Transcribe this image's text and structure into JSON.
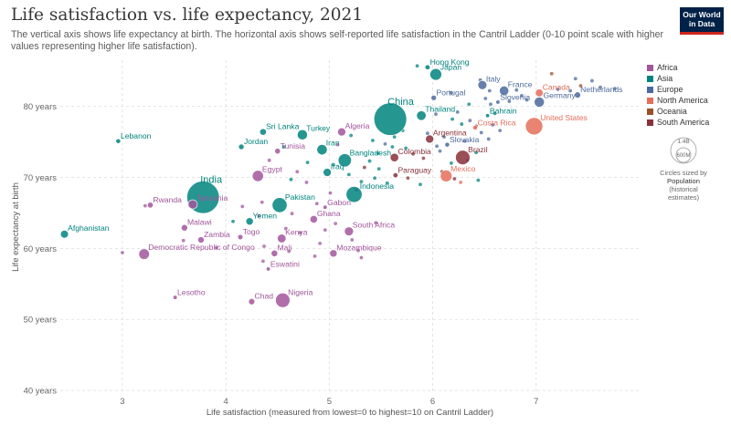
{
  "header": {
    "title": "Life satisfaction vs. life expectancy, 2021",
    "subtitle": "The vertical axis shows life expectancy at birth. The horizontal axis shows self-reported life satisfaction in the Cantril Ladder (0-10 point scale with higher values representing higher life satisfaction).",
    "logo_line1": "Our World",
    "logo_line2": "in Data"
  },
  "size_legend": {
    "big": "1.4B",
    "small": "600M",
    "caption": "Circles sized by",
    "title_line1": "Population",
    "title_line2": "(historical",
    "title_line3": "estimates)"
  },
  "chart_data": {
    "type": "scatter",
    "title": "Life satisfaction vs. life expectancy, 2021",
    "xlabel": "Life satisfaction (measured from lowest=0 to highest=10 on Cantril Ladder)",
    "ylabel": "Life expectancy at birth",
    "xlim": [
      2.4,
      8.0
    ],
    "ylim": [
      39.5,
      86.5
    ],
    "x_ticks": [
      3,
      4,
      5,
      6,
      7
    ],
    "y_ticks": [
      {
        "value": 40,
        "label": "40 years"
      },
      {
        "value": 50,
        "label": "50 years"
      },
      {
        "value": 60,
        "label": "60 years"
      },
      {
        "value": 70,
        "label": "70 years"
      },
      {
        "value": 80,
        "label": "80 years"
      }
    ],
    "grid": true,
    "legend_position": "right",
    "regions": [
      {
        "name": "Africa",
        "color": "#a2559c"
      },
      {
        "name": "Asia",
        "color": "#00847e"
      },
      {
        "name": "Europe",
        "color": "#4c6a9c"
      },
      {
        "name": "North America",
        "color": "#e56e5a"
      },
      {
        "name": "Oceania",
        "color": "#9a5129"
      },
      {
        "name": "South America",
        "color": "#883039"
      }
    ],
    "labeled_points": [
      {
        "label": "Hong Kong",
        "x": 5.95,
        "y": 85.5,
        "region": "Asia",
        "pop": 7.4
      },
      {
        "label": "Japan",
        "x": 6.03,
        "y": 84.5,
        "region": "Asia",
        "pop": 125
      },
      {
        "label": "Italy",
        "x": 6.48,
        "y": 83.0,
        "region": "Europe",
        "pop": 59
      },
      {
        "label": "France",
        "x": 6.69,
        "y": 82.2,
        "region": "Europe",
        "pop": 68
      },
      {
        "label": "Canada",
        "x": 7.03,
        "y": 81.9,
        "region": "North America",
        "pop": 38
      },
      {
        "label": "Netherlands",
        "x": 7.4,
        "y": 81.6,
        "region": "Europe",
        "pop": 17.5
      },
      {
        "label": "Portugal",
        "x": 6.01,
        "y": 81.2,
        "region": "Europe",
        "pop": 10
      },
      {
        "label": "Slovenia",
        "x": 6.63,
        "y": 80.6,
        "region": "Europe",
        "pop": 2.1
      },
      {
        "label": "Germany",
        "x": 7.03,
        "y": 80.6,
        "region": "Europe",
        "pop": 83
      },
      {
        "label": "Thailand",
        "x": 5.89,
        "y": 78.7,
        "region": "Asia",
        "pop": 70
      },
      {
        "label": "Bahrain",
        "x": 6.53,
        "y": 78.7,
        "region": "Asia",
        "pop": 1.5
      },
      {
        "label": "United States",
        "x": 6.98,
        "y": 77.2,
        "region": "North America",
        "pop": 333
      },
      {
        "label": "China",
        "x": 5.59,
        "y": 78.2,
        "region": "Asia",
        "pop": 1425
      },
      {
        "label": "Costa Rica",
        "x": 6.41,
        "y": 77.0,
        "region": "North America",
        "pop": 5.1
      },
      {
        "label": "Sri Lanka",
        "x": 4.36,
        "y": 76.4,
        "region": "Asia",
        "pop": 22
      },
      {
        "label": "Turkey",
        "x": 4.74,
        "y": 76.0,
        "region": "Asia",
        "pop": 85
      },
      {
        "label": "Algeria",
        "x": 5.12,
        "y": 76.4,
        "region": "Africa",
        "pop": 44
      },
      {
        "label": "Argentina",
        "x": 5.97,
        "y": 75.4,
        "region": "South America",
        "pop": 45
      },
      {
        "label": "Slovakia",
        "x": 6.14,
        "y": 74.6,
        "region": "Europe",
        "pop": 5.4
      },
      {
        "label": "Lebanon",
        "x": 2.96,
        "y": 75.1,
        "region": "Asia",
        "pop": 5.6
      },
      {
        "label": "Jordan",
        "x": 4.15,
        "y": 74.3,
        "region": "Asia",
        "pop": 11
      },
      {
        "label": "Iran",
        "x": 4.93,
        "y": 73.9,
        "region": "Asia",
        "pop": 88
      },
      {
        "label": "Tunisia",
        "x": 4.5,
        "y": 73.7,
        "region": "Africa",
        "pop": 12
      },
      {
        "label": "Bangladesh",
        "x": 5.15,
        "y": 72.4,
        "region": "Asia",
        "pop": 169
      },
      {
        "label": "Colombia",
        "x": 5.63,
        "y": 72.8,
        "region": "South America",
        "pop": 51
      },
      {
        "label": "Brazil",
        "x": 6.29,
        "y": 72.8,
        "region": "South America",
        "pop": 214
      },
      {
        "label": "Iraq",
        "x": 4.98,
        "y": 70.7,
        "region": "Asia",
        "pop": 44
      },
      {
        "label": "Egypt",
        "x": 4.31,
        "y": 70.2,
        "region": "Africa",
        "pop": 109
      },
      {
        "label": "Paraguay",
        "x": 5.64,
        "y": 70.3,
        "region": "South America",
        "pop": 6.7
      },
      {
        "label": "Mexico",
        "x": 6.13,
        "y": 70.2,
        "region": "North America",
        "pop": 126
      },
      {
        "label": "India",
        "x": 3.78,
        "y": 67.2,
        "region": "Asia",
        "pop": 1408
      },
      {
        "label": "Tanzania",
        "x": 3.68,
        "y": 66.2,
        "region": "Africa",
        "pop": 64
      },
      {
        "label": "Indonesia",
        "x": 5.24,
        "y": 67.6,
        "region": "Asia",
        "pop": 274
      },
      {
        "label": "Pakistan",
        "x": 4.52,
        "y": 66.1,
        "region": "Asia",
        "pop": 231
      },
      {
        "label": "Rwanda",
        "x": 3.27,
        "y": 66.1,
        "region": "Africa",
        "pop": 13.5
      },
      {
        "label": "Gabon",
        "x": 4.96,
        "y": 65.8,
        "region": "Africa",
        "pop": 2.3
      },
      {
        "label": "Yemen",
        "x": 4.23,
        "y": 63.8,
        "region": "Asia",
        "pop": 33
      },
      {
        "label": "Ghana",
        "x": 4.85,
        "y": 64.1,
        "region": "Africa",
        "pop": 33
      },
      {
        "label": "South Africa",
        "x": 5.19,
        "y": 62.4,
        "region": "Africa",
        "pop": 59
      },
      {
        "label": "Malawi",
        "x": 3.6,
        "y": 62.9,
        "region": "Africa",
        "pop": 19.9
      },
      {
        "label": "Togo",
        "x": 4.14,
        "y": 61.6,
        "region": "Africa",
        "pop": 8.6
      },
      {
        "label": "Kenya",
        "x": 4.54,
        "y": 61.4,
        "region": "Africa",
        "pop": 53
      },
      {
        "label": "Zambia",
        "x": 3.76,
        "y": 61.2,
        "region": "Africa",
        "pop": 19.5
      },
      {
        "label": "Afghanistan",
        "x": 2.44,
        "y": 62.0,
        "region": "Asia",
        "pop": 40
      },
      {
        "label": "Democratic Republic of Congo",
        "x": 3.21,
        "y": 59.2,
        "region": "Africa",
        "pop": 96
      },
      {
        "label": "Mali",
        "x": 4.47,
        "y": 59.3,
        "region": "Africa",
        "pop": 22
      },
      {
        "label": "Mozambique",
        "x": 5.04,
        "y": 59.3,
        "region": "Africa",
        "pop": 32
      },
      {
        "label": "Eswatini",
        "x": 4.41,
        "y": 57.1,
        "region": "Africa",
        "pop": 1.2
      },
      {
        "label": "Lesotho",
        "x": 3.51,
        "y": 53.1,
        "region": "Africa",
        "pop": 2.3
      },
      {
        "label": "Chad",
        "x": 4.25,
        "y": 52.5,
        "region": "Africa",
        "pop": 17.2
      },
      {
        "label": "Nigeria",
        "x": 4.55,
        "y": 52.7,
        "region": "Africa",
        "pop": 213
      }
    ],
    "unlabeled_points": [
      {
        "x": 5.85,
        "y": 85.7,
        "region": "Asia"
      },
      {
        "x": 6.46,
        "y": 83.7,
        "region": "Europe"
      },
      {
        "x": 7.15,
        "y": 84.6,
        "region": "Oceania"
      },
      {
        "x": 7.38,
        "y": 83.9,
        "region": "Europe"
      },
      {
        "x": 7.54,
        "y": 83.6,
        "region": "Europe"
      },
      {
        "x": 7.76,
        "y": 82.5,
        "region": "Europe"
      },
      {
        "x": 7.62,
        "y": 82.7,
        "region": "Europe"
      },
      {
        "x": 7.43,
        "y": 82.9,
        "region": "Oceania"
      },
      {
        "x": 6.55,
        "y": 82.2,
        "region": "Europe"
      },
      {
        "x": 6.81,
        "y": 82.3,
        "region": "Europe"
      },
      {
        "x": 6.86,
        "y": 81.5,
        "region": "Europe"
      },
      {
        "x": 7.33,
        "y": 82.2,
        "region": "Europe"
      },
      {
        "x": 7.21,
        "y": 82.4,
        "region": "Europe"
      },
      {
        "x": 6.18,
        "y": 81.9,
        "region": "Europe"
      },
      {
        "x": 6.51,
        "y": 81.1,
        "region": "Europe"
      },
      {
        "x": 6.74,
        "y": 80.7,
        "region": "Europe"
      },
      {
        "x": 6.91,
        "y": 80.9,
        "region": "Europe"
      },
      {
        "x": 6.56,
        "y": 80.3,
        "region": "Europe"
      },
      {
        "x": 6.24,
        "y": 79.2,
        "region": "Europe"
      },
      {
        "x": 6.03,
        "y": 78.9,
        "region": "Europe"
      },
      {
        "x": 6.36,
        "y": 78.0,
        "region": "Europe"
      },
      {
        "x": 6.42,
        "y": 77.2,
        "region": "South America"
      },
      {
        "x": 6.28,
        "y": 77.5,
        "region": "Asia"
      },
      {
        "x": 6.19,
        "y": 78.2,
        "region": "Asia"
      },
      {
        "x": 5.95,
        "y": 76.2,
        "region": "Europe"
      },
      {
        "x": 6.65,
        "y": 76.6,
        "region": "Europe"
      },
      {
        "x": 6.58,
        "y": 77.4,
        "region": "Europe"
      },
      {
        "x": 6.54,
        "y": 75.4,
        "region": "Europe"
      },
      {
        "x": 6.47,
        "y": 76.3,
        "region": "Europe"
      },
      {
        "x": 6.11,
        "y": 75.7,
        "region": "Europe"
      },
      {
        "x": 6.04,
        "y": 74.4,
        "region": "Europe"
      },
      {
        "x": 6.31,
        "y": 75.1,
        "region": "Europe"
      },
      {
        "x": 5.63,
        "y": 75.7,
        "region": "Asia"
      },
      {
        "x": 5.54,
        "y": 74.7,
        "region": "Europe"
      },
      {
        "x": 5.42,
        "y": 75.2,
        "region": "Asia"
      },
      {
        "x": 5.74,
        "y": 74.1,
        "region": "Asia"
      },
      {
        "x": 5.81,
        "y": 73.3,
        "region": "South America"
      },
      {
        "x": 5.91,
        "y": 72.7,
        "region": "South America"
      },
      {
        "x": 6.07,
        "y": 73.7,
        "region": "Europe"
      },
      {
        "x": 6.18,
        "y": 72.0,
        "region": "Asia"
      },
      {
        "x": 6.09,
        "y": 70.8,
        "region": "South America"
      },
      {
        "x": 6.21,
        "y": 69.8,
        "region": "South America"
      },
      {
        "x": 6.27,
        "y": 69.3,
        "region": "North America"
      },
      {
        "x": 6.44,
        "y": 69.6,
        "region": "Asia"
      },
      {
        "x": 5.47,
        "y": 73.4,
        "region": "Asia"
      },
      {
        "x": 5.39,
        "y": 72.3,
        "region": "Asia"
      },
      {
        "x": 5.34,
        "y": 71.4,
        "region": "South America"
      },
      {
        "x": 5.04,
        "y": 71.8,
        "region": "Asia"
      },
      {
        "x": 5.19,
        "y": 70.4,
        "region": "Asia"
      },
      {
        "x": 5.31,
        "y": 69.4,
        "region": "Asia"
      },
      {
        "x": 5.56,
        "y": 69.2,
        "region": "Asia"
      },
      {
        "x": 5.76,
        "y": 69.9,
        "region": "South America"
      },
      {
        "x": 5.88,
        "y": 69.0,
        "region": "Asia"
      },
      {
        "x": 4.56,
        "y": 74.3,
        "region": "Asia"
      },
      {
        "x": 4.79,
        "y": 72.1,
        "region": "Asia"
      },
      {
        "x": 4.69,
        "y": 70.8,
        "region": "Africa"
      },
      {
        "x": 4.63,
        "y": 69.7,
        "region": "Asia"
      },
      {
        "x": 4.42,
        "y": 72.4,
        "region": "Africa"
      },
      {
        "x": 5.08,
        "y": 74.6,
        "region": "Africa"
      },
      {
        "x": 5.21,
        "y": 75.9,
        "region": "Asia"
      },
      {
        "x": 5.44,
        "y": 69.9,
        "region": "Asia"
      },
      {
        "x": 5.26,
        "y": 68.2,
        "region": "Africa"
      },
      {
        "x": 5.01,
        "y": 67.8,
        "region": "Africa"
      },
      {
        "x": 4.88,
        "y": 66.3,
        "region": "Africa"
      },
      {
        "x": 4.64,
        "y": 64.9,
        "region": "Africa"
      },
      {
        "x": 4.32,
        "y": 64.6,
        "region": "Africa"
      },
      {
        "x": 4.07,
        "y": 63.8,
        "region": "Asia"
      },
      {
        "x": 4.58,
        "y": 62.8,
        "region": "Africa"
      },
      {
        "x": 4.72,
        "y": 62.2,
        "region": "Africa"
      },
      {
        "x": 4.96,
        "y": 62.6,
        "region": "Africa"
      },
      {
        "x": 5.06,
        "y": 63.5,
        "region": "Africa"
      },
      {
        "x": 5.22,
        "y": 61.2,
        "region": "Africa"
      },
      {
        "x": 5.45,
        "y": 63.6,
        "region": "Africa"
      },
      {
        "x": 4.91,
        "y": 60.7,
        "region": "Africa"
      },
      {
        "x": 5.28,
        "y": 59.7,
        "region": "Africa"
      },
      {
        "x": 5.31,
        "y": 58.7,
        "region": "Africa"
      },
      {
        "x": 4.61,
        "y": 59.6,
        "region": "Africa"
      },
      {
        "x": 4.37,
        "y": 60.3,
        "region": "Africa"
      },
      {
        "x": 4.86,
        "y": 58.9,
        "region": "Africa"
      },
      {
        "x": 4.36,
        "y": 58.2,
        "region": "Africa"
      },
      {
        "x": 3.91,
        "y": 60.1,
        "region": "Africa"
      },
      {
        "x": 3.59,
        "y": 61.1,
        "region": "Africa"
      },
      {
        "x": 3.0,
        "y": 59.4,
        "region": "Africa"
      },
      {
        "x": 3.22,
        "y": 66.0,
        "region": "Africa"
      },
      {
        "x": 4.16,
        "y": 65.9,
        "region": "Africa"
      },
      {
        "x": 4.35,
        "y": 66.5,
        "region": "Africa"
      },
      {
        "x": 4.78,
        "y": 69.3,
        "region": "Africa"
      },
      {
        "x": 5.61,
        "y": 74.3,
        "region": "Asia"
      },
      {
        "x": 5.71,
        "y": 76.6,
        "region": "Asia"
      },
      {
        "x": 6.35,
        "y": 80.3,
        "region": "Asia"
      },
      {
        "x": 6.42,
        "y": 73.5,
        "region": "Asia"
      },
      {
        "x": 6.6,
        "y": 79.0,
        "region": "Asia"
      },
      {
        "x": 6.34,
        "y": 72.4,
        "region": "Asia"
      },
      {
        "x": 5.48,
        "y": 71.2,
        "region": "Asia"
      }
    ]
  }
}
